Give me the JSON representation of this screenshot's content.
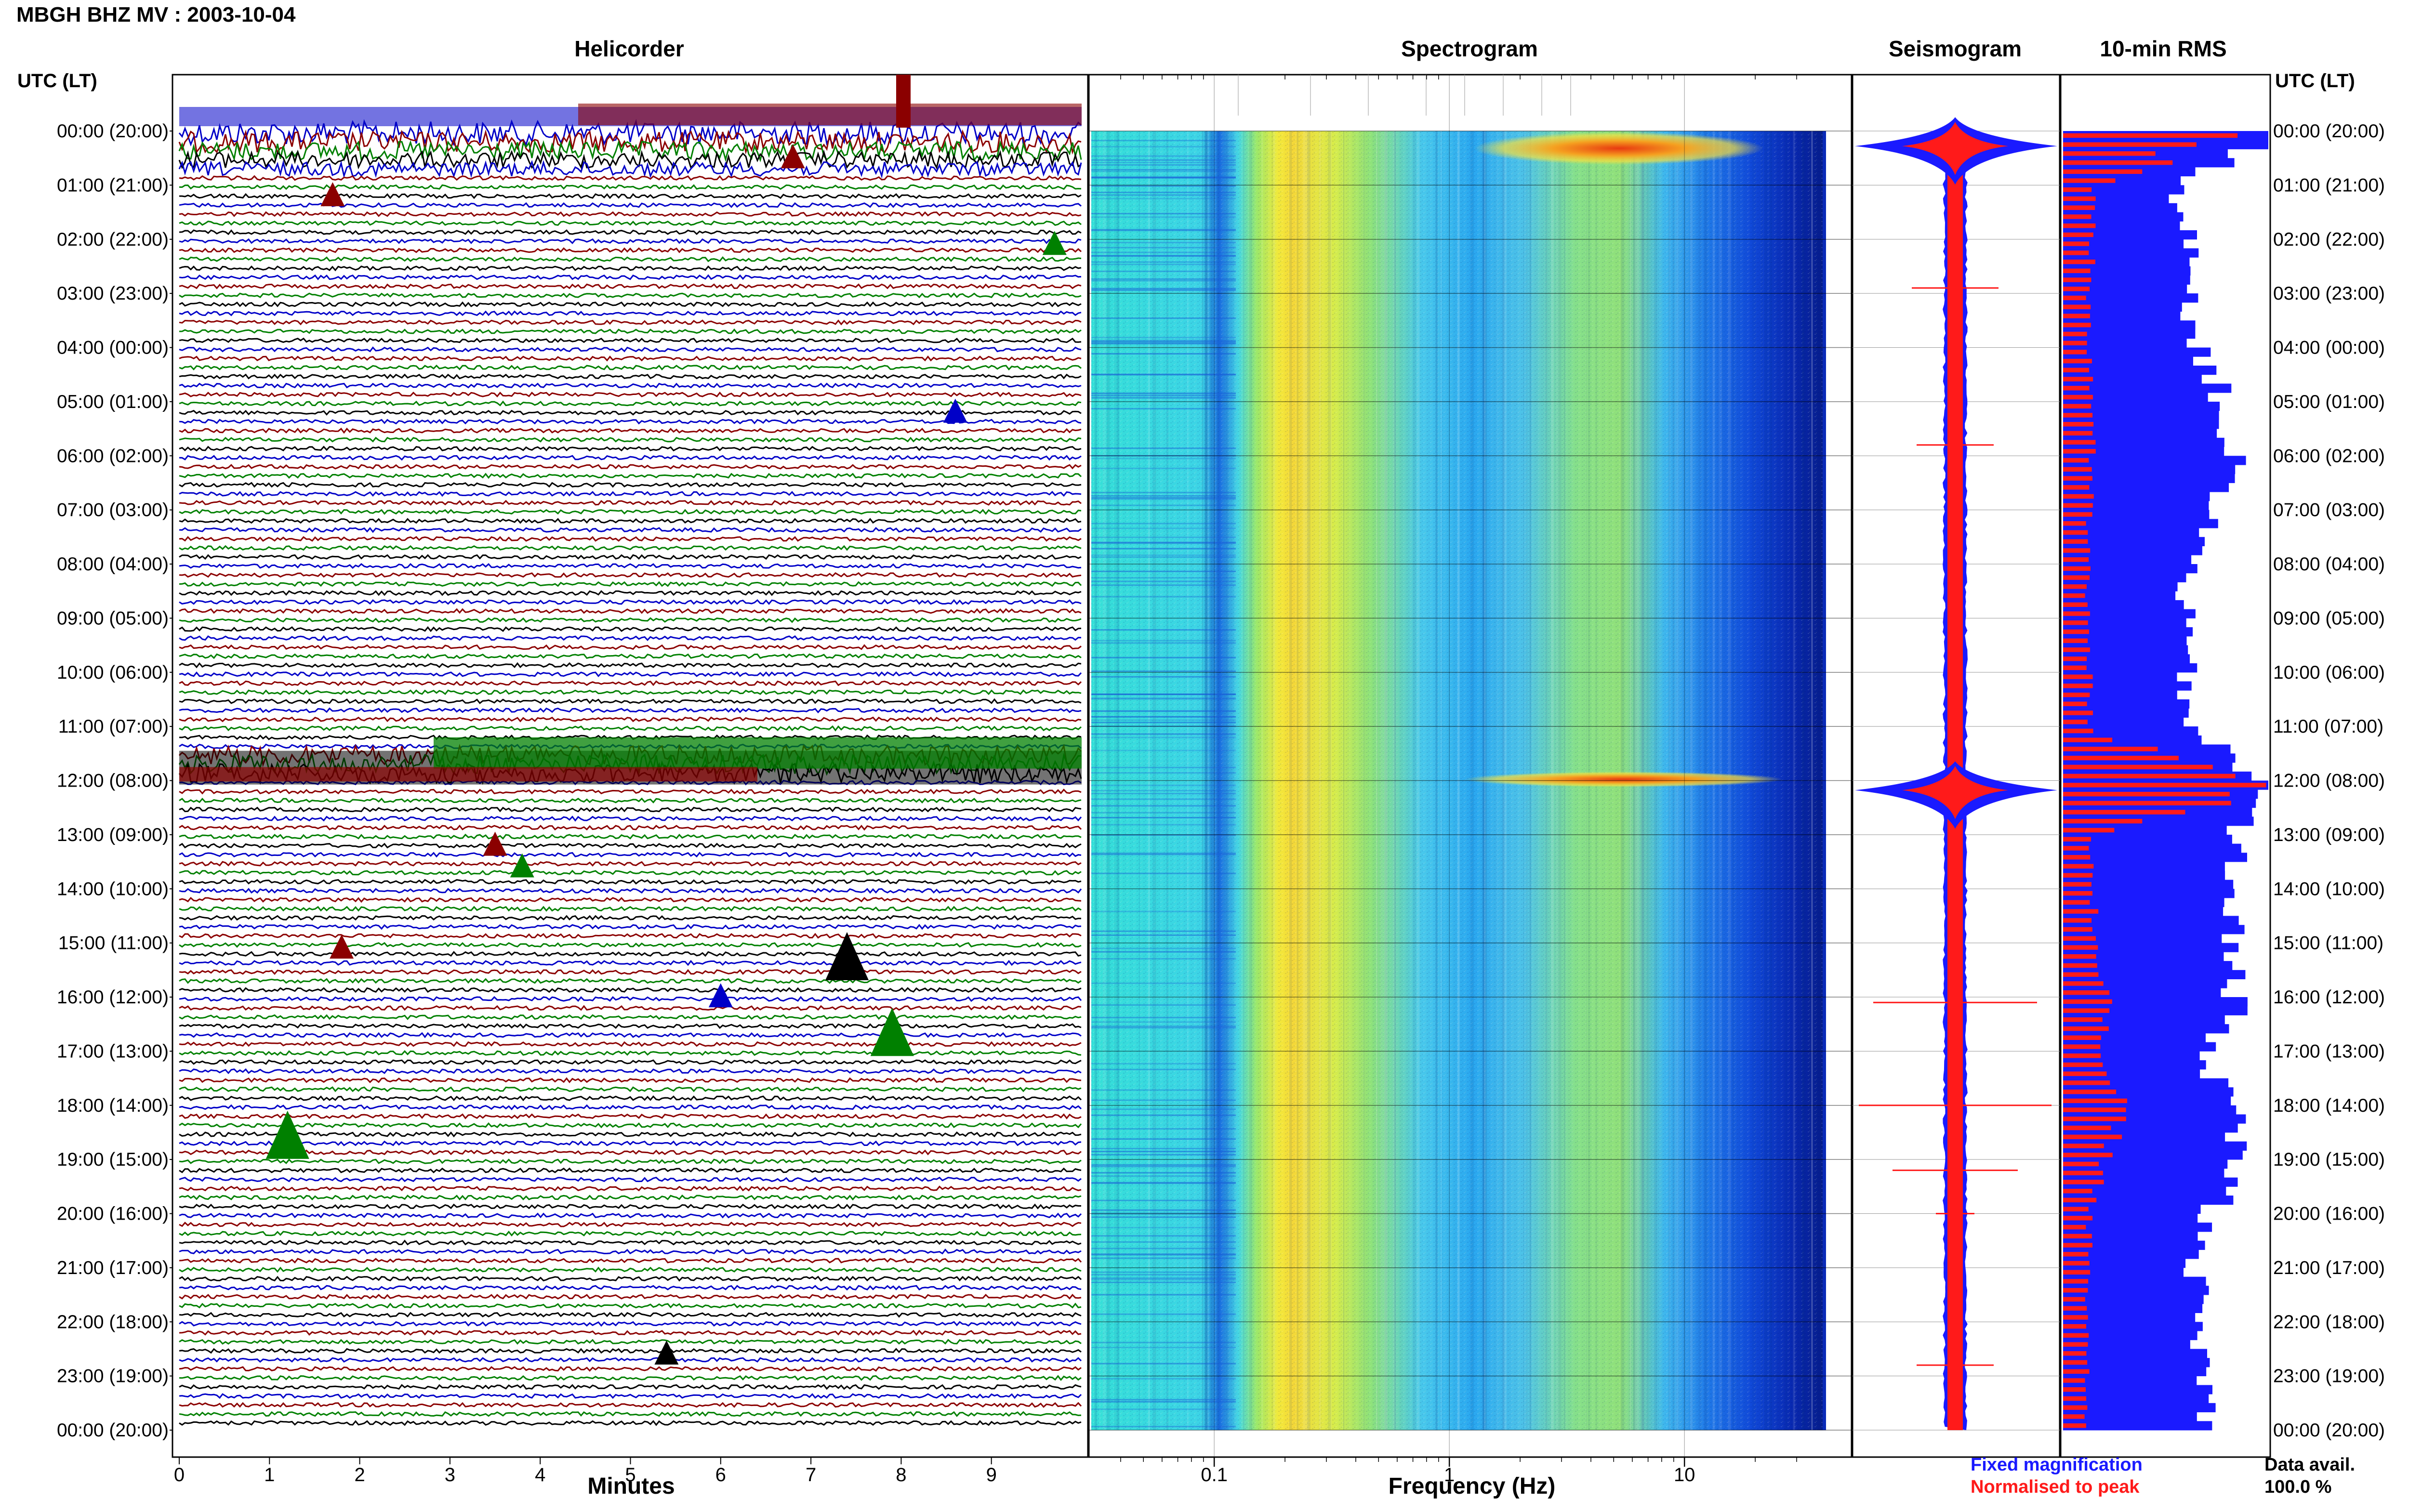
{
  "header": {
    "station_title": "MBGH BHZ MV : 2003-10-04"
  },
  "panels": {
    "helicorder": "Helicorder",
    "spectrogram": "Spectrogram",
    "seismogram": "Seismogram",
    "rms": "10-min RMS"
  },
  "time_axis_header": "UTC (LT)",
  "time_labels": [
    "00:00 (20:00)",
    "01:00 (21:00)",
    "02:00 (22:00)",
    "03:00 (23:00)",
    "04:00 (00:00)",
    "05:00 (01:00)",
    "06:00 (02:00)",
    "07:00 (03:00)",
    "08:00 (04:00)",
    "09:00 (05:00)",
    "10:00 (06:00)",
    "11:00 (07:00)",
    "12:00 (08:00)",
    "13:00 (09:00)",
    "14:00 (10:00)",
    "15:00 (11:00)",
    "16:00 (12:00)",
    "17:00 (13:00)",
    "18:00 (14:00)",
    "19:00 (15:00)",
    "20:00 (16:00)",
    "21:00 (17:00)",
    "22:00 (18:00)",
    "23:00 (19:00)",
    "00:00 (20:00)"
  ],
  "axes": {
    "minutes_label": "Minutes",
    "minutes_ticks": [
      "0",
      "1",
      "2",
      "3",
      "4",
      "5",
      "6",
      "7",
      "8",
      "9"
    ],
    "frequency_label": "Frequency (Hz)",
    "frequency_ticks": [
      "0.1",
      "1",
      "10"
    ]
  },
  "legend": {
    "fixed": "Fixed magnification",
    "normalised": "Normalised to peak",
    "fixed_color": "#1a1aff",
    "normalised_color": "#ff1a1a"
  },
  "data_availability": {
    "label": "Data avail.",
    "value": "100.0 %"
  },
  "chart_data": {
    "type": "heatmap",
    "station": "MBGH BHZ MV",
    "date": "2003-10-04",
    "helicorder": {
      "x_range_minutes": [
        0,
        10
      ],
      "trace_colors": [
        "#0000c8",
        "#8b0000",
        "#008000",
        "#000000"
      ],
      "events": [
        {
          "hour": 0.6,
          "minute": 6.8,
          "color": "#8b0000"
        },
        {
          "hour": 1.3,
          "minute": 1.7,
          "color": "#8b0000"
        },
        {
          "hour": 2.2,
          "minute": 9.7,
          "color": "#008000"
        },
        {
          "hour": 5.3,
          "minute": 8.6,
          "color": "#0000c8"
        },
        {
          "hour": 13.3,
          "minute": 3.5,
          "color": "#8b0000"
        },
        {
          "hour": 13.7,
          "minute": 3.8,
          "color": "#008000"
        },
        {
          "hour": 15.2,
          "minute": 1.8,
          "color": "#8b0000"
        },
        {
          "hour": 15.6,
          "minute": 7.4,
          "color": "#000000"
        },
        {
          "hour": 16.1,
          "minute": 6.0,
          "color": "#0000c8"
        },
        {
          "hour": 17.0,
          "minute": 7.9,
          "color": "#008000"
        },
        {
          "hour": 18.9,
          "minute": 1.2,
          "color": "#008000"
        },
        {
          "hour": 22.7,
          "minute": 5.4,
          "color": "#000000"
        }
      ],
      "high_amplitude_hours": [
        [
          0,
          0.7
        ],
        [
          11.4,
          12.0
        ]
      ]
    },
    "spectrogram": {
      "x_scale": "log",
      "x_range_hz": [
        0.03,
        40
      ],
      "strong_bands": [
        {
          "hour_range": [
            0,
            0.4
          ],
          "freq_range_hz": [
            1.2,
            8
          ]
        },
        {
          "hour_range": [
            11.9,
            12.1
          ],
          "freq_range_hz": [
            1,
            8
          ]
        }
      ],
      "microseism_peak_hz": 0.15
    },
    "rms": {
      "series": [
        {
          "name": "Fixed magnification",
          "color": "#1a1aff",
          "values": [
            1.0,
            0.55,
            0.65,
            0.6,
            0.68,
            0.78,
            0.82,
            0.72,
            0.62,
            0.58,
            0.6,
            0.62,
            1.0,
            0.82,
            0.85,
            0.8,
            0.85,
            0.7,
            0.82,
            0.85,
            0.72,
            0.65,
            0.65,
            0.7
          ]
        },
        {
          "name": "Normalised to peak",
          "color": "#ff1a1a",
          "values": [
            0.85,
            0.15,
            0.14,
            0.13,
            0.13,
            0.14,
            0.14,
            0.13,
            0.12,
            0.12,
            0.13,
            0.13,
            1.0,
            0.14,
            0.15,
            0.15,
            0.25,
            0.16,
            0.3,
            0.2,
            0.13,
            0.12,
            0.12,
            0.12
          ]
        }
      ]
    }
  }
}
